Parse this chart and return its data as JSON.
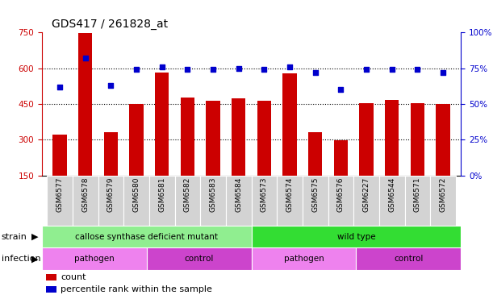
{
  "title": "GDS417 / 261828_at",
  "samples": [
    "GSM6577",
    "GSM6578",
    "GSM6579",
    "GSM6580",
    "GSM6581",
    "GSM6582",
    "GSM6583",
    "GSM6584",
    "GSM6573",
    "GSM6574",
    "GSM6575",
    "GSM6576",
    "GSM6227",
    "GSM6544",
    "GSM6571",
    "GSM6572"
  ],
  "counts": [
    320,
    748,
    332,
    450,
    582,
    478,
    465,
    473,
    462,
    580,
    332,
    298,
    452,
    468,
    455,
    450
  ],
  "percentiles": [
    62,
    82,
    63,
    74,
    76,
    74,
    74,
    75,
    74,
    76,
    72,
    60,
    74,
    74,
    74,
    72
  ],
  "ylim_left": [
    150,
    750
  ],
  "ylim_right": [
    0,
    100
  ],
  "yticks_left": [
    150,
    300,
    450,
    600,
    750
  ],
  "yticks_right": [
    0,
    25,
    50,
    75,
    100
  ],
  "bar_color": "#cc0000",
  "dot_color": "#0000cc",
  "bg_color": "#ffffff",
  "cell_bg": "#d3d3d3",
  "strain_colors": [
    "#90ee90",
    "#33dd33"
  ],
  "infection_colors": [
    "#ee82ee",
    "#cc44cc"
  ],
  "tick_color_left": "#cc0000",
  "tick_color_right": "#0000cc",
  "title_fontsize": 10,
  "label_fontsize": 7.5,
  "tick_fontsize": 7.5,
  "sample_fontsize": 6.5
}
